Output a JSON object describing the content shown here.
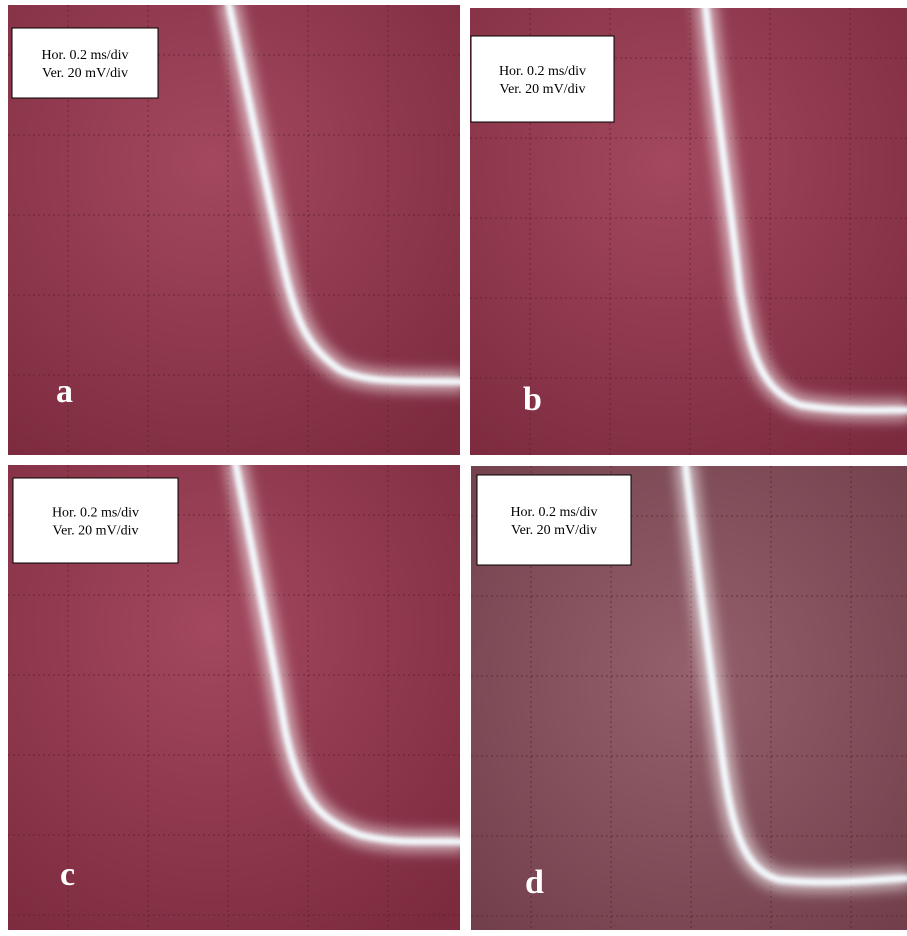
{
  "panels": [
    {
      "label": "a",
      "horizontal": "Hor. 0.2 ms/div",
      "vertical": "Ver. 20 mV/div"
    },
    {
      "label": "b",
      "horizontal": "Hor. 0.2 ms/div",
      "vertical": "Ver. 20 mV/div"
    },
    {
      "label": "c",
      "horizontal": "Hor. 0.2 ms/div",
      "vertical": "Ver. 20 mV/div"
    },
    {
      "label": "d",
      "horizontal": "Hor. 0.2 ms/div",
      "vertical": "Ver. 20 mV/div"
    }
  ]
}
